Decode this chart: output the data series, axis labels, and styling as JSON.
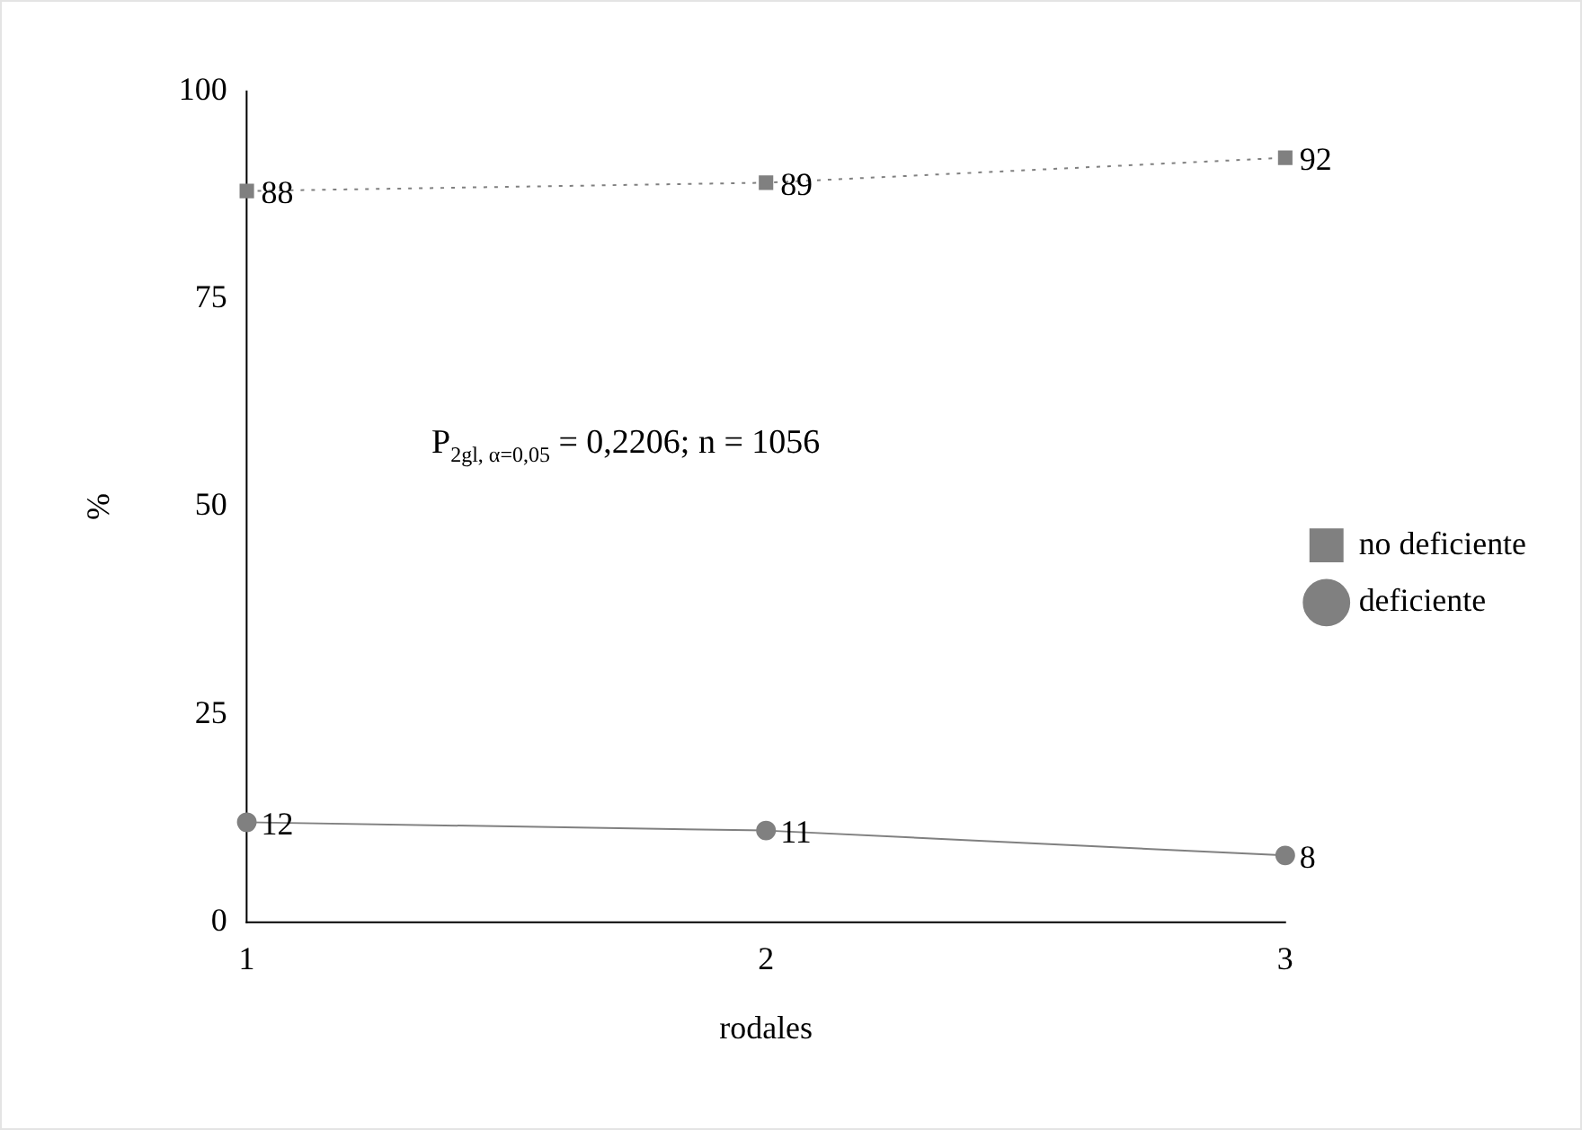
{
  "chart_data": {
    "type": "line",
    "xlabel": "rodales",
    "ylabel": "%",
    "categories": [
      "1",
      "2",
      "3"
    ],
    "series": [
      {
        "name": "no deficiente",
        "color": "#808080",
        "values": [
          88,
          89,
          92
        ],
        "marker": "square",
        "line_style": "dotted"
      },
      {
        "name": "deficiente",
        "color": "#808080",
        "values": [
          12,
          11,
          8
        ],
        "marker": "circle",
        "line_style": "solid"
      }
    ],
    "ylim": [
      0,
      100
    ],
    "yticks": [
      0,
      25,
      50,
      75,
      100
    ],
    "grid": false,
    "legend": "right",
    "data_labels": true,
    "annotations": [
      "P$_{2gl, α=0,05}$ = 0,2206; n = 1056"
    ]
  }
}
